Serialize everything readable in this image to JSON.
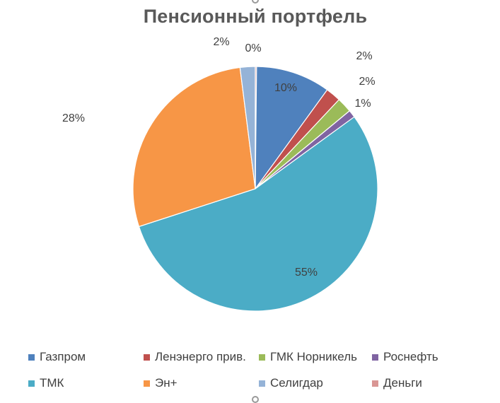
{
  "chart_data": {
    "type": "pie",
    "title": "Пенсионный портфель",
    "categories": [
      "Газпром",
      "Ленэнерго прив.",
      "ГМК Норникель",
      "Роснефть",
      "ТМК",
      "Эн+",
      "Селигдар",
      "Деньги"
    ],
    "values": [
      10,
      2,
      2,
      1,
      55,
      28,
      2,
      0
    ],
    "labels": [
      "10%",
      "2%",
      "2%",
      "1%",
      "55%",
      "28%",
      "2%",
      "0%"
    ],
    "colors": [
      "#4f81bd",
      "#c0504d",
      "#9bbb59",
      "#8064a2",
      "#4bacc6",
      "#f79646",
      "#95b3d7",
      "#d99694"
    ],
    "legend_position": "bottom",
    "start_angle_deg": 0,
    "direction": "clockwise"
  }
}
